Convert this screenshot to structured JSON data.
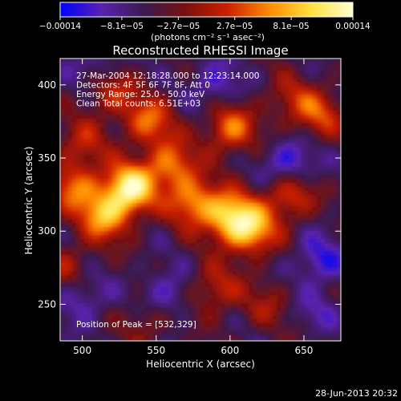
{
  "colorbar": {
    "ticks": [
      {
        "value": -0.00014,
        "label": "−0.00014"
      },
      {
        "value": -8.1e-05,
        "label": "−8.1e−05"
      },
      {
        "value": -2.7e-05,
        "label": "−2.7e−05"
      },
      {
        "value": 2.7e-05,
        "label": "2.7e−05"
      },
      {
        "value": 8.1e-05,
        "label": "8.1e−05"
      },
      {
        "value": 0.00014,
        "label": "0.00014"
      }
    ],
    "range": [
      -0.00014,
      0.00014
    ],
    "unit_label": "(photons cm⁻² s⁻¹ asec⁻²)",
    "colors": [
      "#0000ff",
      "#5a22b0",
      "#3a1a50",
      "#7a1010",
      "#cc2000",
      "#ff8a00",
      "#ffe040",
      "#ffffd0"
    ]
  },
  "chart_data": {
    "type": "heatmap",
    "title": "Reconstructed RHESSI Image",
    "xlabel": "Heliocentric X (arcsec)",
    "ylabel": "Heliocentric Y (arcsec)",
    "xlim": [
      485,
      675
    ],
    "ylim": [
      225,
      418
    ],
    "xticks": [
      500,
      550,
      600,
      650
    ],
    "yticks": [
      250,
      300,
      350,
      400
    ],
    "annotations": [
      "27-Mar-2004 12:18:28.000 to 12:23:14.000",
      "Detectors: 4F 5F 6F 7F 8F, Att 0",
      "Energy Range: 25.0 - 50.0 keV",
      "Clean     Total counts: 6.51E+03"
    ],
    "peak_label": "Position of Peak = [532,329]",
    "peak": [
      532,
      329
    ],
    "sources": [
      {
        "x": 532,
        "y": 329,
        "amp": 1.0
      },
      {
        "x": 515,
        "y": 310,
        "amp": 0.7
      },
      {
        "x": 495,
        "y": 330,
        "amp": 0.55
      },
      {
        "x": 560,
        "y": 345,
        "amp": 0.6
      },
      {
        "x": 575,
        "y": 320,
        "amp": 0.65
      },
      {
        "x": 600,
        "y": 310,
        "amp": 0.8
      },
      {
        "x": 615,
        "y": 300,
        "amp": 0.7
      },
      {
        "x": 640,
        "y": 325,
        "amp": 0.55
      },
      {
        "x": 660,
        "y": 380,
        "amp": 0.45
      },
      {
        "x": 600,
        "y": 370,
        "amp": 0.6
      },
      {
        "x": 545,
        "y": 375,
        "amp": 0.55
      },
      {
        "x": 500,
        "y": 360,
        "amp": 0.35
      },
      {
        "x": 520,
        "y": 395,
        "amp": 0.4
      },
      {
        "x": 490,
        "y": 275,
        "amp": 0.3
      },
      {
        "x": 590,
        "y": 260,
        "amp": 0.4
      },
      {
        "x": 625,
        "y": 250,
        "amp": 0.25
      },
      {
        "x": 545,
        "y": 240,
        "amp": 0.3
      },
      {
        "x": 660,
        "y": 235,
        "amp": 0.3
      },
      {
        "x": 640,
        "y": 390,
        "amp": 0.3
      },
      {
        "x": 660,
        "y": 280,
        "amp": -0.35
      },
      {
        "x": 640,
        "y": 345,
        "amp": -0.45
      },
      {
        "x": 500,
        "y": 255,
        "amp": -0.3
      },
      {
        "x": 555,
        "y": 255,
        "amp": -0.35
      },
      {
        "x": 660,
        "y": 240,
        "amp": -0.45
      },
      {
        "x": 590,
        "y": 400,
        "amp": -0.3
      },
      {
        "x": 510,
        "y": 415,
        "amp": -0.25
      }
    ]
  },
  "footer": {
    "date": "28-Jun-2013 20:32"
  }
}
